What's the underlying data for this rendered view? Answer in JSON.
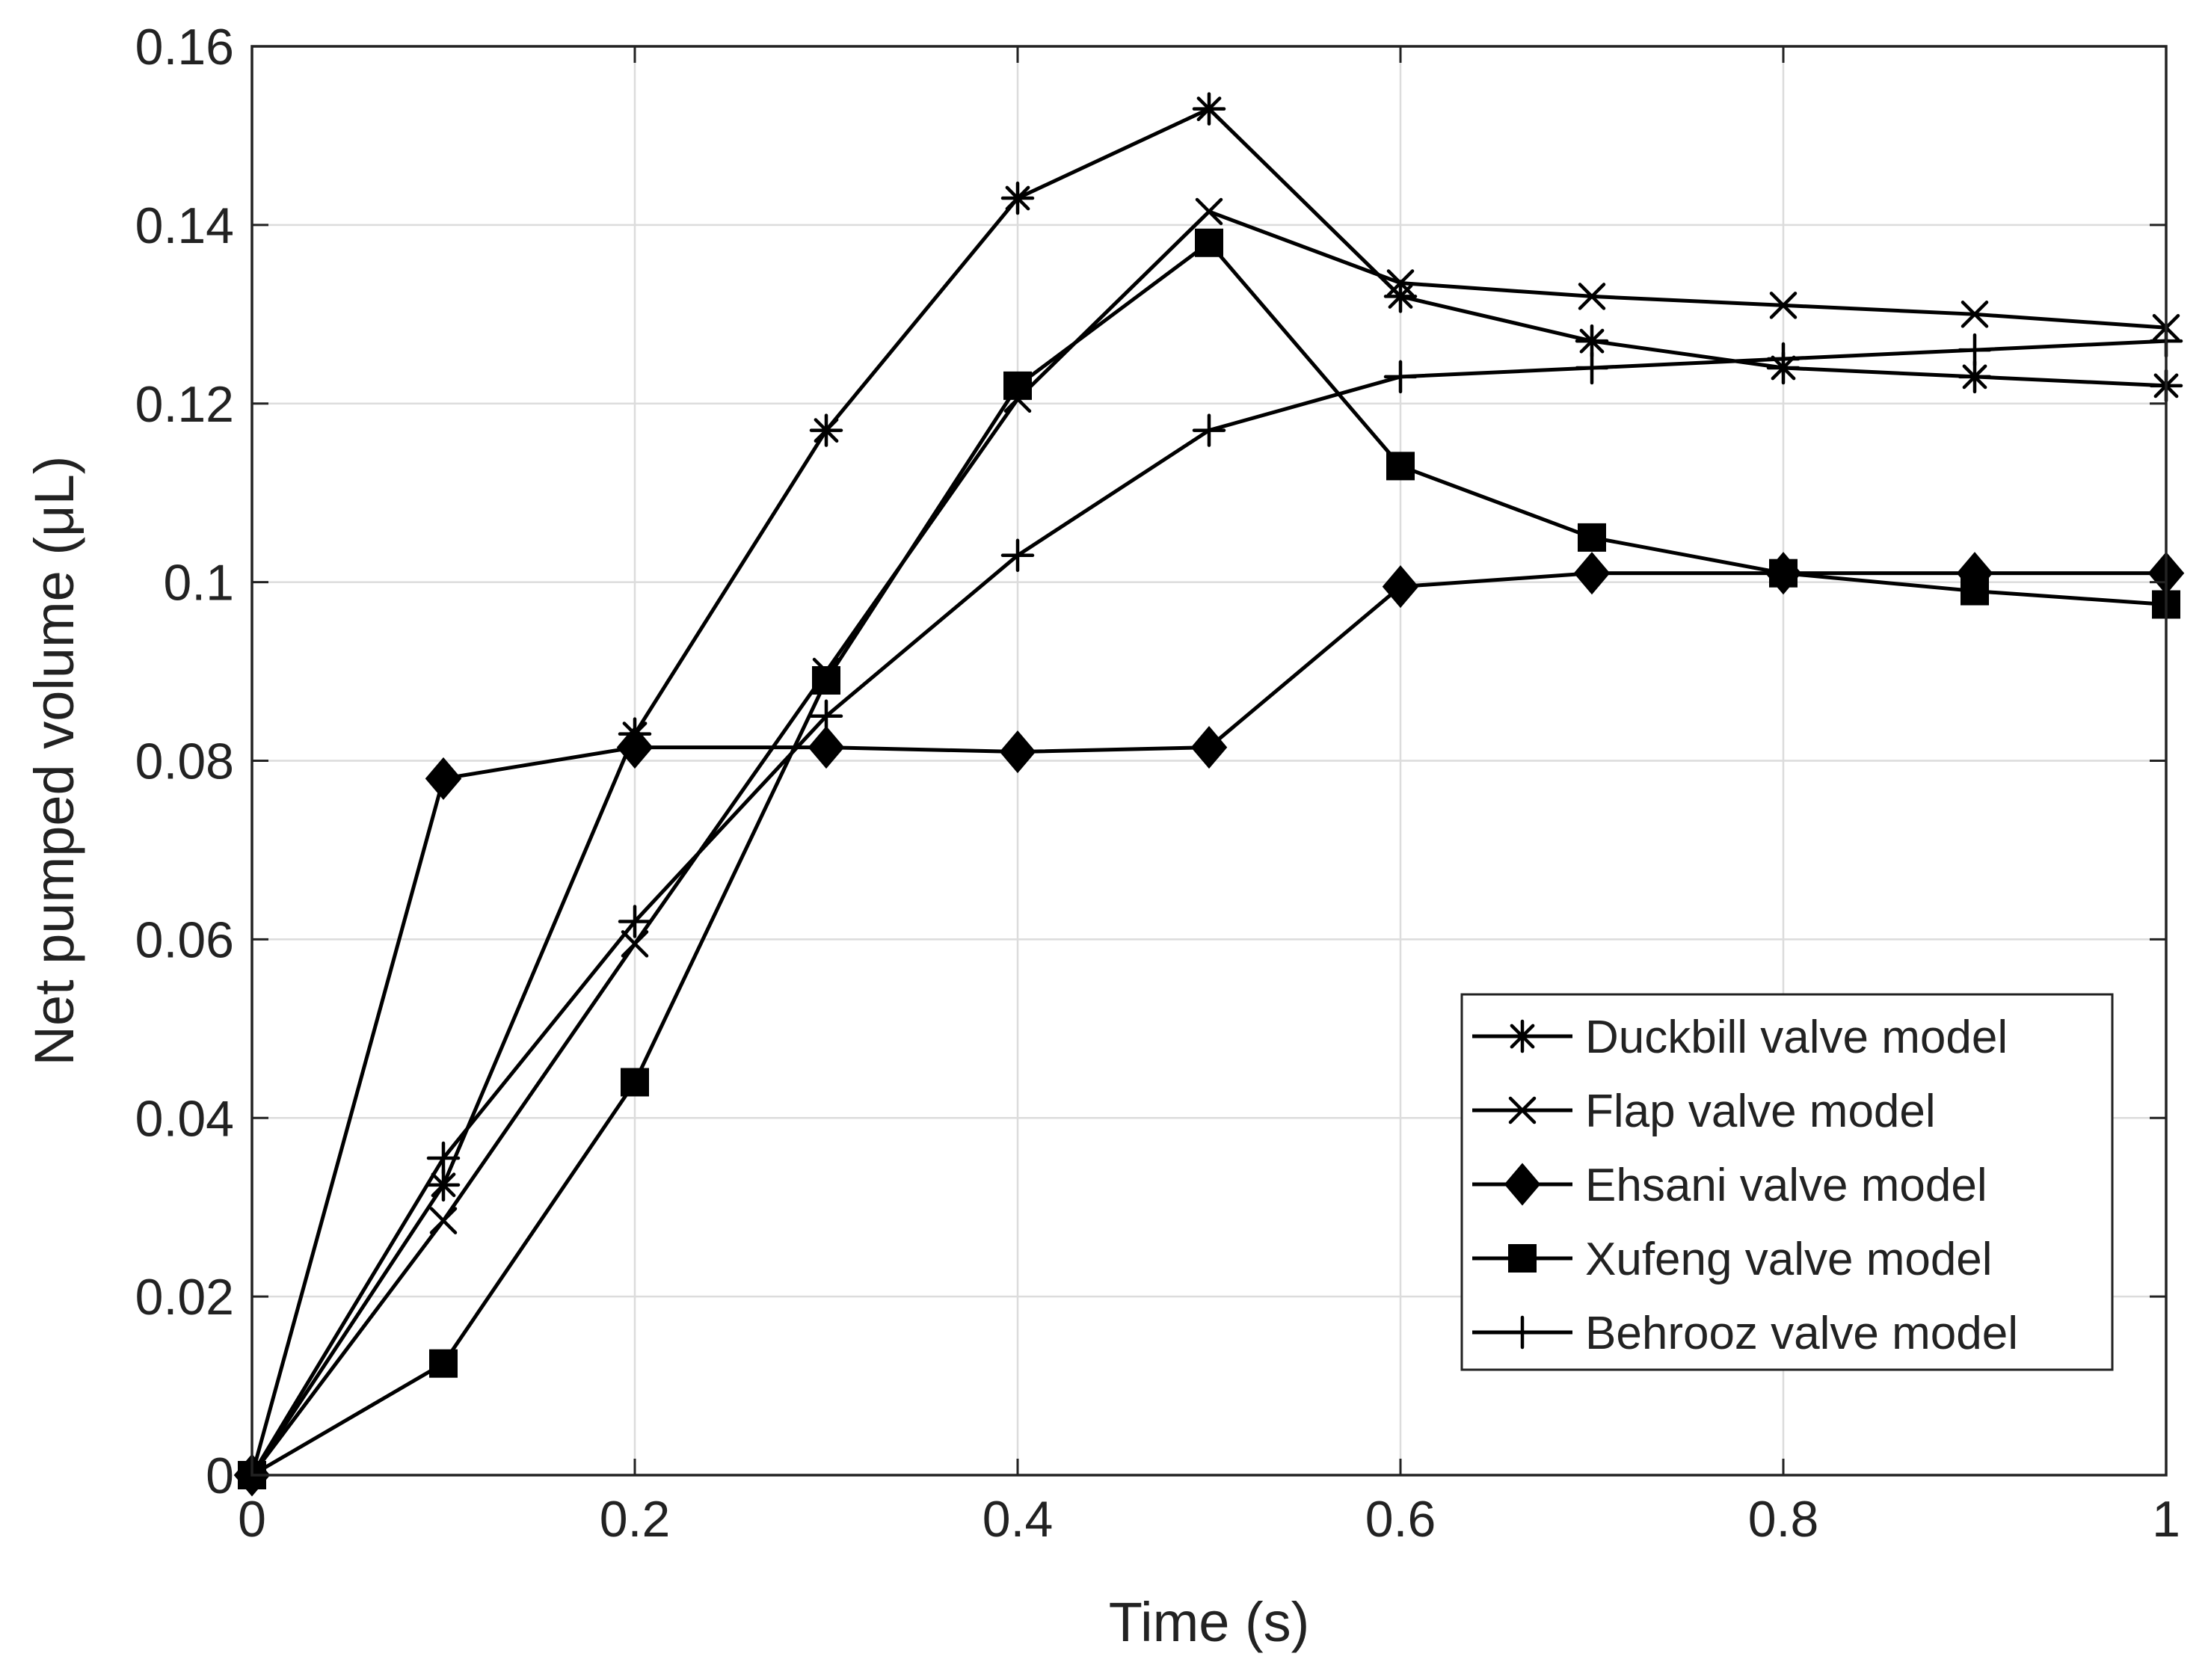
{
  "chart_data": {
    "type": "line",
    "title": "",
    "xlabel": "Time (s)",
    "ylabel": "Net pumped volume (μL)",
    "xlim": [
      0,
      1
    ],
    "ylim": [
      0,
      0.16
    ],
    "xticks": [
      0,
      0.2,
      0.4,
      0.6,
      0.8,
      1
    ],
    "xtick_labels": [
      "0",
      "0.2",
      "0.4",
      "0.6",
      "0.8",
      "1"
    ],
    "yticks": [
      0,
      0.02,
      0.04,
      0.06,
      0.08,
      0.1,
      0.12,
      0.14,
      0.16
    ],
    "ytick_labels": [
      "0",
      "0.02",
      "0.04",
      "0.06",
      "0.08",
      "0.1",
      "0.12",
      "0.14",
      "0.16"
    ],
    "grid": true,
    "legend_position": "lower-right",
    "x": [
      0,
      0.1,
      0.2,
      0.3,
      0.4,
      0.5,
      0.6,
      0.7,
      0.8,
      0.9,
      1.0
    ],
    "series": [
      {
        "name": "Duckbill valve model",
        "marker": "asterisk",
        "color": "#000000",
        "values": [
          0,
          0.0325,
          0.083,
          0.117,
          0.143,
          0.153,
          0.132,
          0.127,
          0.124,
          0.123,
          0.122
        ]
      },
      {
        "name": "Flap valve model",
        "marker": "x",
        "color": "#000000",
        "values": [
          0,
          0.0285,
          0.0595,
          0.09,
          0.1205,
          0.1415,
          0.1335,
          0.132,
          0.131,
          0.13,
          0.1285
        ]
      },
      {
        "name": "Ehsani valve model",
        "marker": "diamond",
        "color": "#000000",
        "values": [
          0,
          0.078,
          0.0815,
          0.0815,
          0.081,
          0.0815,
          0.0995,
          0.101,
          0.101,
          0.101,
          0.101
        ]
      },
      {
        "name": "Xufeng valve model",
        "marker": "square",
        "color": "#000000",
        "values": [
          0,
          0.0125,
          0.044,
          0.089,
          0.122,
          0.138,
          0.113,
          0.105,
          0.101,
          0.099,
          0.0975
        ]
      },
      {
        "name": "Behrooz valve model",
        "marker": "plus",
        "color": "#000000",
        "values": [
          0,
          0.0355,
          0.062,
          0.085,
          0.103,
          0.117,
          0.123,
          0.124,
          0.125,
          0.126,
          0.127
        ]
      }
    ]
  }
}
